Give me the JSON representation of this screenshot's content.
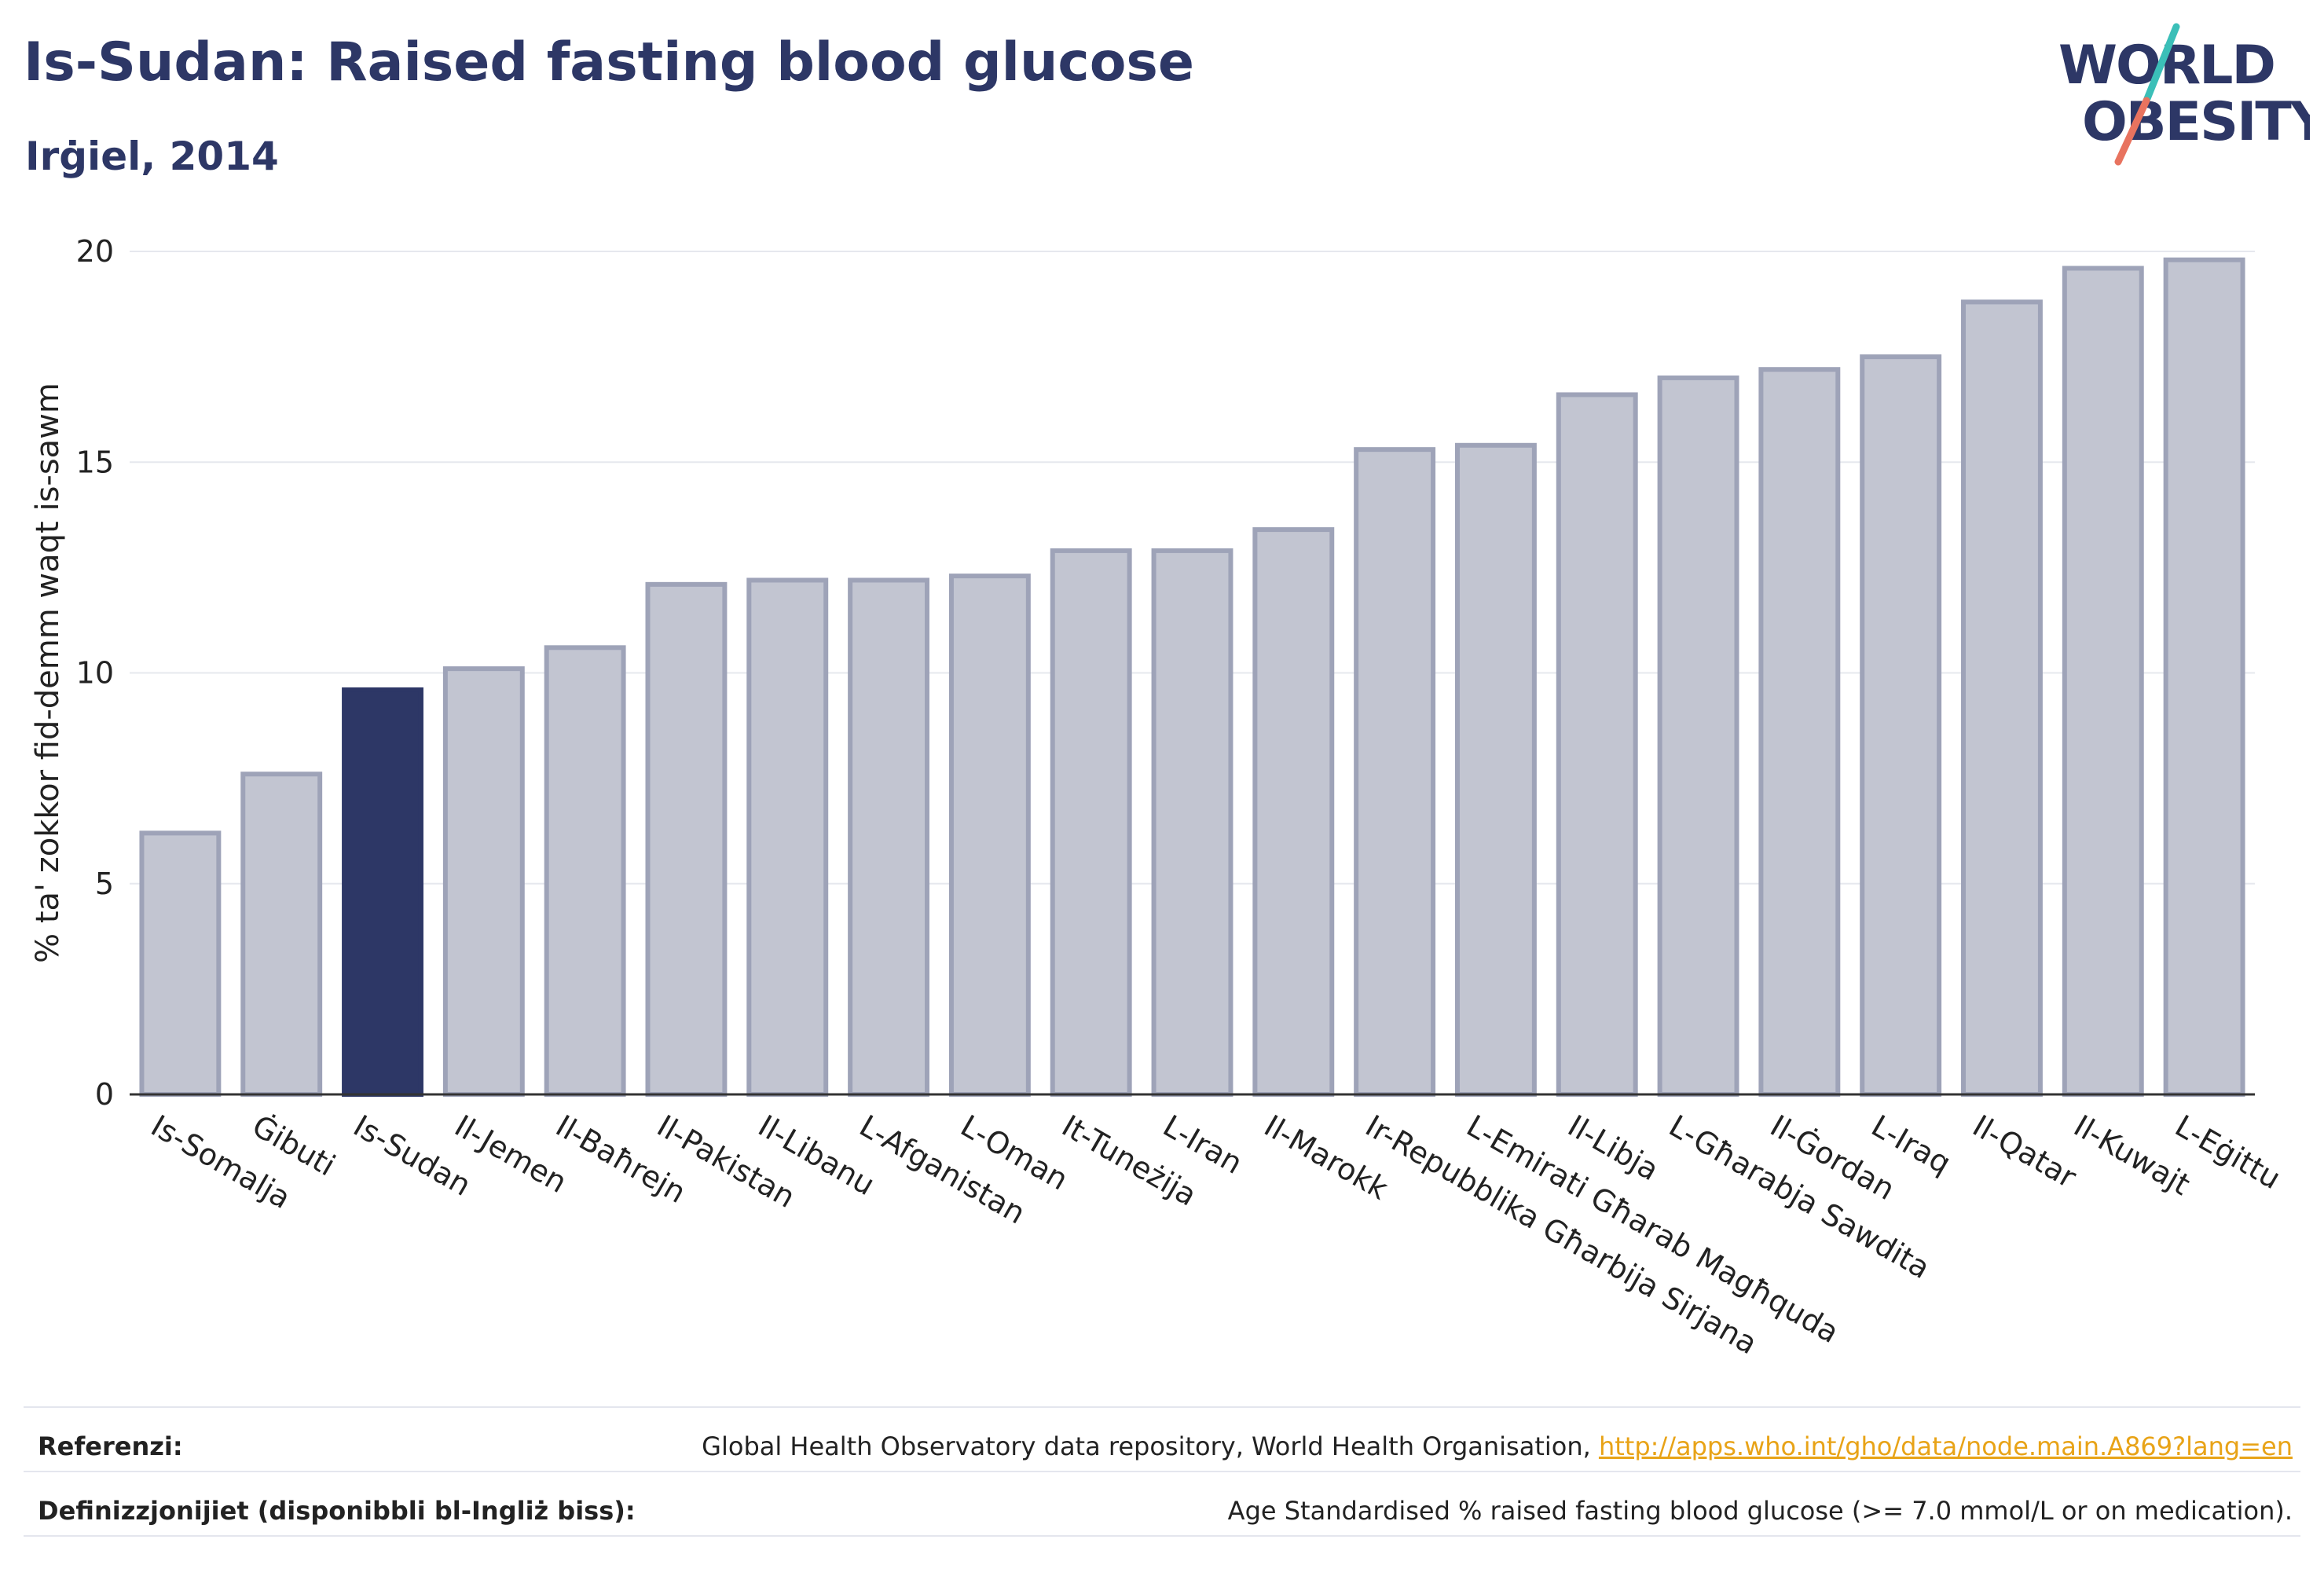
{
  "header": {
    "title": "Is-Sudan: Raised fasting blood glucose",
    "subtitle": "Irġiel, 2014"
  },
  "logo": {
    "line1": "WORLD",
    "line2": "OBESITY",
    "colors": {
      "text": "#2d3766",
      "slash_top": "#3bbfb8",
      "slash_bottom": "#e8735f"
    }
  },
  "chart_data": {
    "type": "bar",
    "ylabel": "% ta' zokkor fid-demm waqt is-sawm",
    "xlabel": "",
    "ylim": [
      0,
      20
    ],
    "yticks": [
      0,
      5,
      10,
      15,
      20
    ],
    "grid": true,
    "highlight": "Is-Sudan",
    "colors": {
      "bar": "#c2c5d1",
      "bar_border": "#9ea3b8",
      "highlight": "#2d3766",
      "grid": "#e6e8ee",
      "axis": "#333333"
    },
    "categories": [
      "Is-Somalja",
      "Ġibuti",
      "Is-Sudan",
      "Il-Jemen",
      "Il-Baħrejn",
      "Il-Pakistan",
      "Il-Libanu",
      "L-Afganistan",
      "L-Oman",
      "It-Tuneżija",
      "L-Iran",
      "Il-Marokk",
      "Ir-Repubblika Għarbija Sirjana",
      "L-Emirati Għarab Magħquda",
      "Il-Libja",
      "L-Għarabja Sawdita",
      "Il-Ġordan",
      "L-Iraq",
      "Il-Qatar",
      "Il-Kuwajt",
      "L-Eġittu"
    ],
    "values": [
      6.2,
      7.6,
      9.6,
      10.1,
      10.6,
      12.1,
      12.2,
      12.2,
      12.3,
      12.9,
      12.9,
      13.4,
      15.3,
      15.4,
      16.6,
      17.0,
      17.2,
      17.5,
      18.8,
      19.6,
      19.8
    ]
  },
  "footer": {
    "references_label": "Referenzi:",
    "references_text": "Global Health Observatory data repository, World Health Organisation, ",
    "references_link": "http://apps.who.int/gho/data/node.main.A869?lang=en",
    "definitions_label": "Definizzjonijiet (disponibbli bl-Ingliż biss):",
    "definitions_text": "Age Standardised % raised fasting blood glucose (>= 7.0 mmol/L or on medication)."
  }
}
